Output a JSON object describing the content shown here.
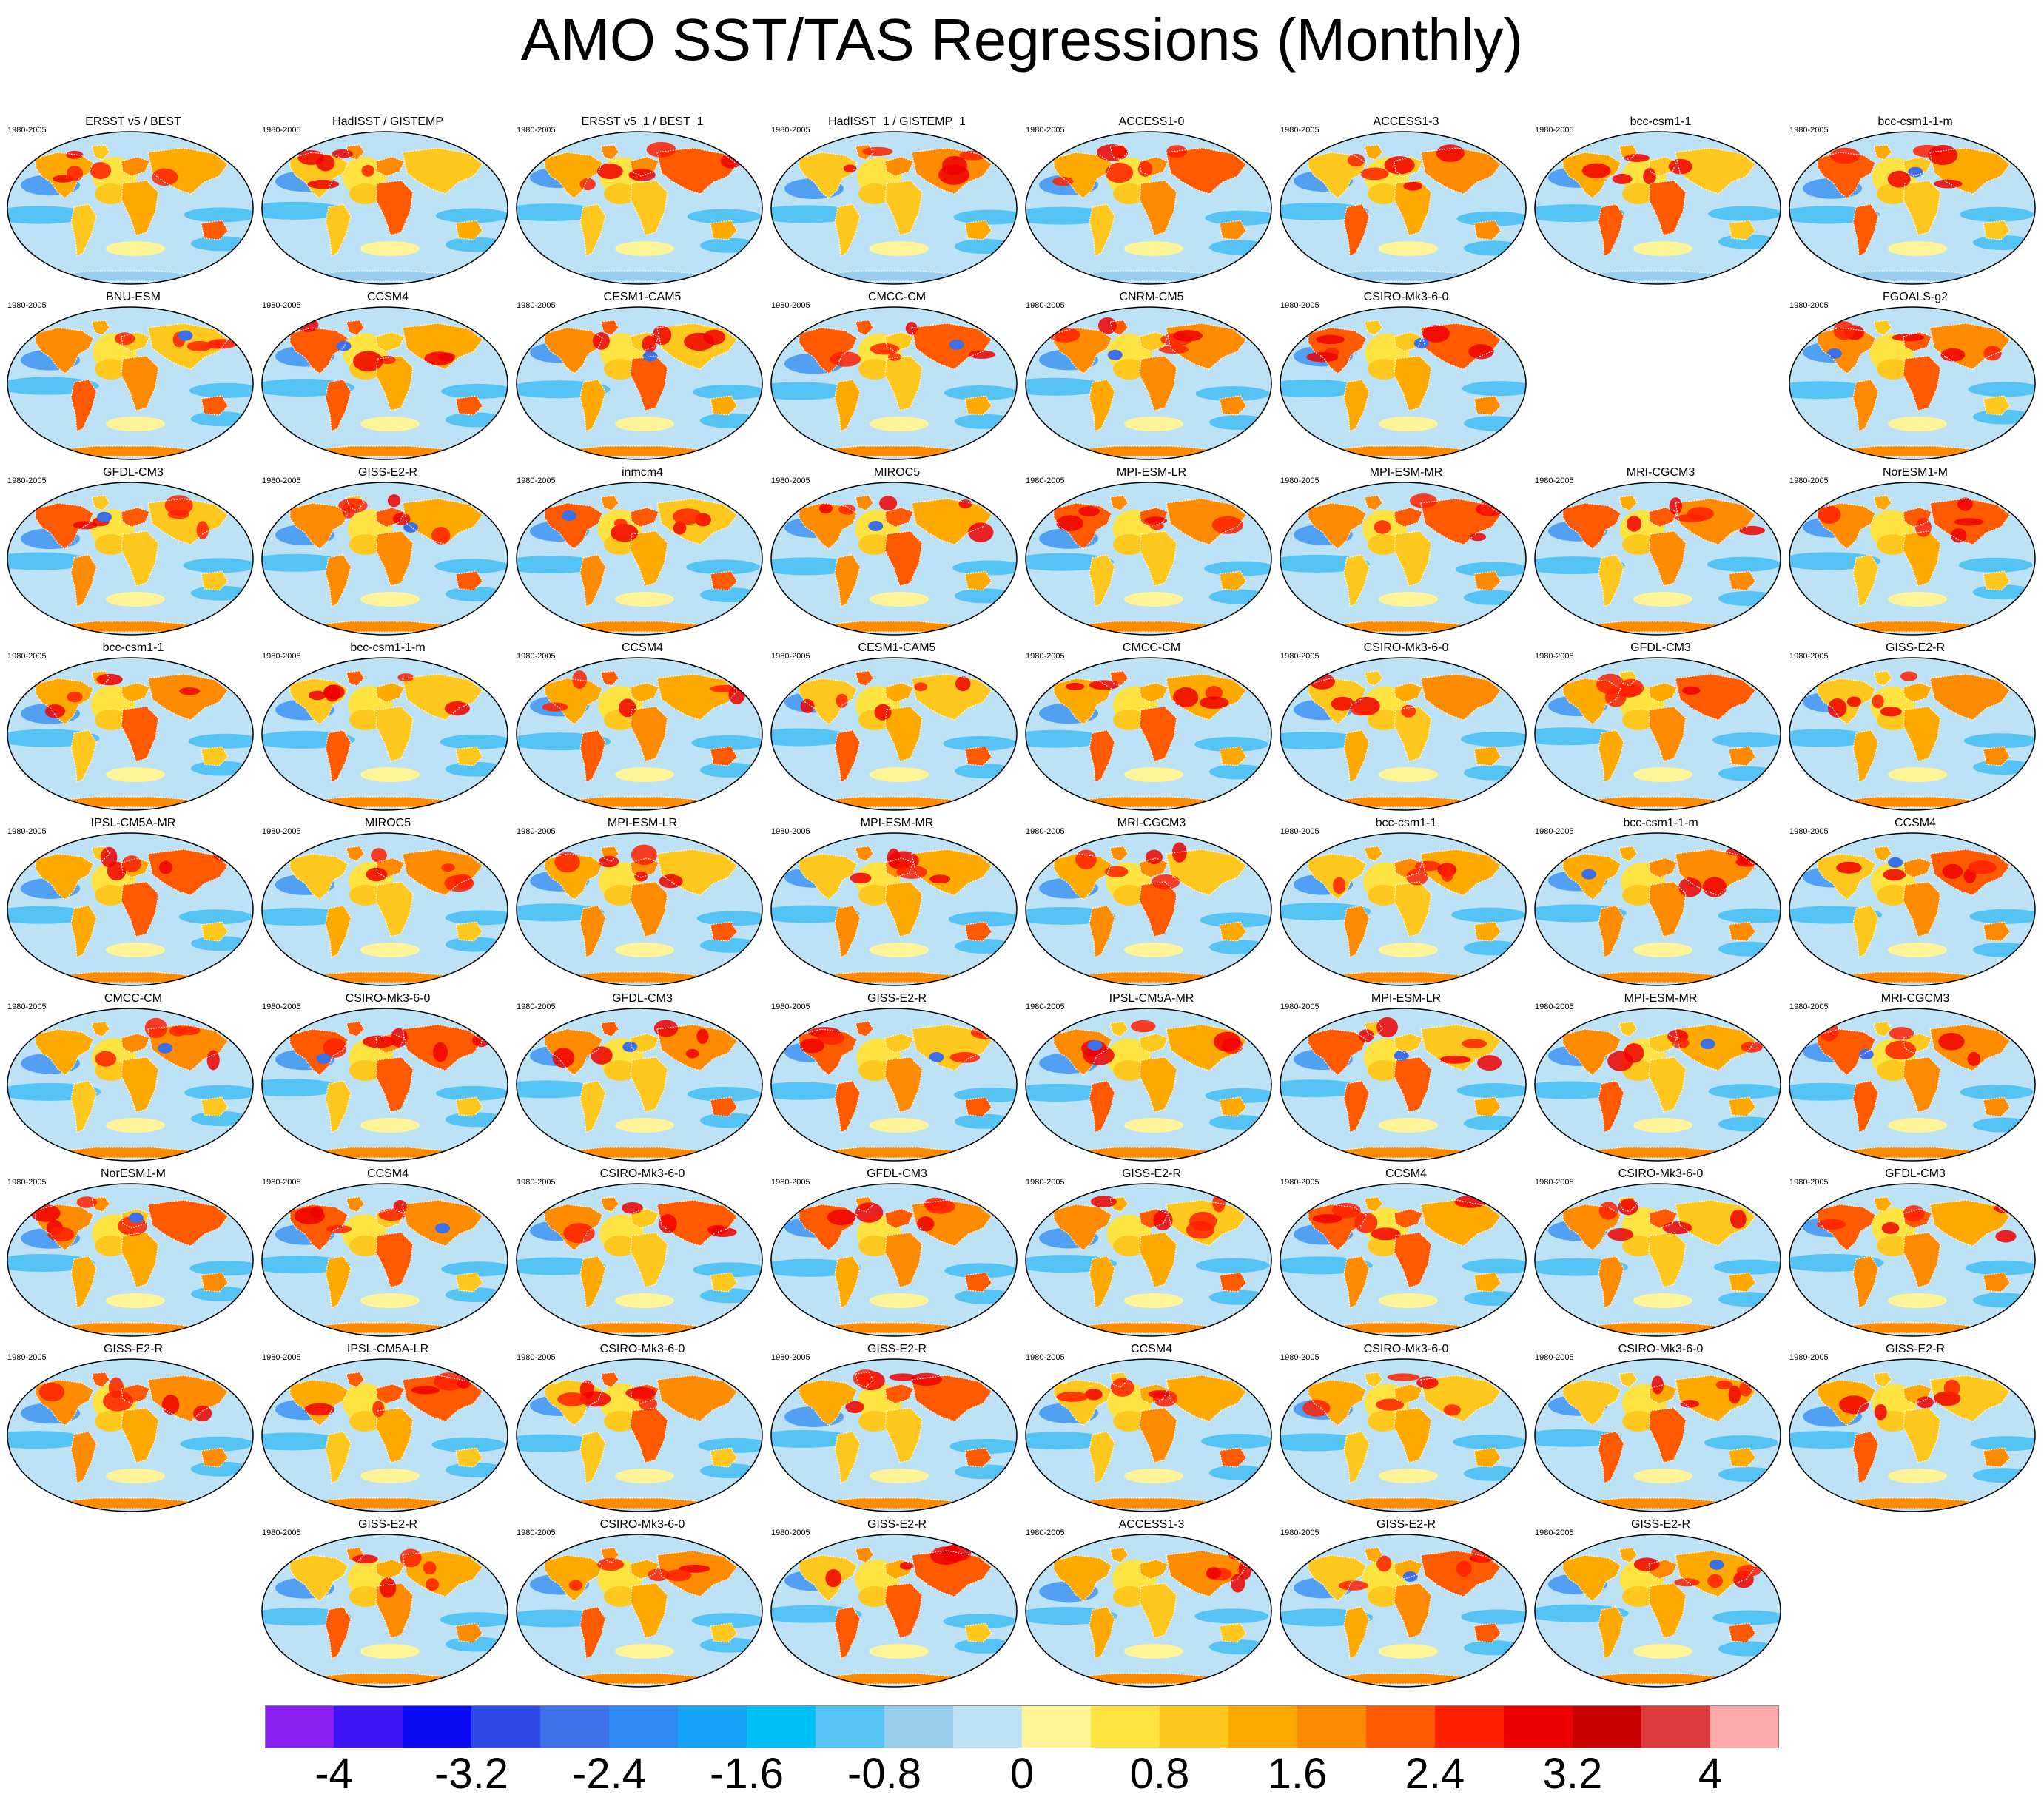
{
  "title": "AMO SST/TAS Regressions (Monthly)",
  "period_label": "1980-2005",
  "panel_rows": [
    {
      "cols": [
        0,
        1,
        2,
        3,
        4,
        5,
        6,
        7
      ],
      "names": [
        "ERSST v5 / BEST",
        "HadISST / GISTEMP",
        "ERSST v5_1 / BEST_1",
        "HadISST_1 / GISTEMP_1",
        "ACCESS1-0",
        "ACCESS1-3",
        "bcc-csm1-1",
        "bcc-csm1-1-m"
      ]
    },
    {
      "cols": [
        0,
        1,
        2,
        3,
        4,
        5,
        7
      ],
      "names": [
        "BNU-ESM",
        "CCSM4",
        "CESM1-CAM5",
        "CMCC-CM",
        "CNRM-CM5",
        "CSIRO-Mk3-6-0",
        "FGOALS-g2"
      ]
    },
    {
      "cols": [
        0,
        1,
        2,
        3,
        4,
        5,
        6,
        7
      ],
      "names": [
        "GFDL-CM3",
        "GISS-E2-R",
        "inmcm4",
        "MIROC5",
        "MPI-ESM-LR",
        "MPI-ESM-MR",
        "MRI-CGCM3",
        "NorESM1-M"
      ]
    },
    {
      "cols": [
        0,
        1,
        2,
        3,
        4,
        5,
        6,
        7
      ],
      "names": [
        "bcc-csm1-1",
        "bcc-csm1-1-m",
        "CCSM4",
        "CESM1-CAM5",
        "CMCC-CM",
        "CSIRO-Mk3-6-0",
        "GFDL-CM3",
        "GISS-E2-R"
      ]
    },
    {
      "cols": [
        0,
        1,
        2,
        3,
        4,
        5,
        6,
        7
      ],
      "names": [
        "IPSL-CM5A-MR",
        "MIROC5",
        "MPI-ESM-LR",
        "MPI-ESM-MR",
        "MRI-CGCM3",
        "bcc-csm1-1",
        "bcc-csm1-1-m",
        "CCSM4"
      ]
    },
    {
      "cols": [
        0,
        1,
        2,
        3,
        4,
        5,
        6,
        7
      ],
      "names": [
        "CMCC-CM",
        "CSIRO-Mk3-6-0",
        "GFDL-CM3",
        "GISS-E2-R",
        "IPSL-CM5A-MR",
        "MPI-ESM-LR",
        "MPI-ESM-MR",
        "MRI-CGCM3"
      ]
    },
    {
      "cols": [
        0,
        1,
        2,
        3,
        4,
        5,
        6,
        7
      ],
      "names": [
        "NorESM1-M",
        "CCSM4",
        "CSIRO-Mk3-6-0",
        "GFDL-CM3",
        "GISS-E2-R",
        "CCSM4",
        "CSIRO-Mk3-6-0",
        "GFDL-CM3"
      ]
    },
    {
      "cols": [
        0,
        1,
        2,
        3,
        4,
        5,
        6,
        7
      ],
      "names": [
        "GISS-E2-R",
        "IPSL-CM5A-LR",
        "CSIRO-Mk3-6-0",
        "GISS-E2-R",
        "CCSM4",
        "CSIRO-Mk3-6-0",
        "CSIRO-Mk3-6-0",
        "GISS-E2-R"
      ]
    },
    {
      "cols": [
        1,
        2,
        3,
        4,
        5,
        6
      ],
      "names": [
        "GISS-E2-R",
        "CSIRO-Mk3-6-0",
        "GISS-E2-R",
        "ACCESS1-3",
        "GISS-E2-R",
        "GISS-E2-R"
      ]
    }
  ],
  "chart_data": {
    "type": "heatmap",
    "title": "AMO SST/TAS Regressions (Monthly)",
    "colorbar": {
      "ticks": [
        "-4",
        "-3.2",
        "-2.4",
        "-1.6",
        "-0.8",
        "0",
        "0.8",
        "1.6",
        "2.4",
        "3.2",
        "4"
      ],
      "tick_values": [
        -4,
        -3.2,
        -2.4,
        -1.6,
        -0.8,
        0,
        0.8,
        1.6,
        2.4,
        3.2,
        4
      ],
      "range": [
        -4.4,
        4.4
      ],
      "colors": [
        "#8b1ef0",
        "#3d14f5",
        "#0a0af5",
        "#2d4ae6",
        "#3d6fe8",
        "#2e8af2",
        "#17a3f5",
        "#00c0f7",
        "#55c3f3",
        "#98cdee",
        "#bde1f5",
        "#fff598",
        "#ffe340",
        "#ffc81e",
        "#ffaa00",
        "#ff8c00",
        "#ff5a00",
        "#ff2000",
        "#ee0000",
        "#c80000",
        "#dc3c3c",
        "#ffaaaa"
      ]
    }
  }
}
